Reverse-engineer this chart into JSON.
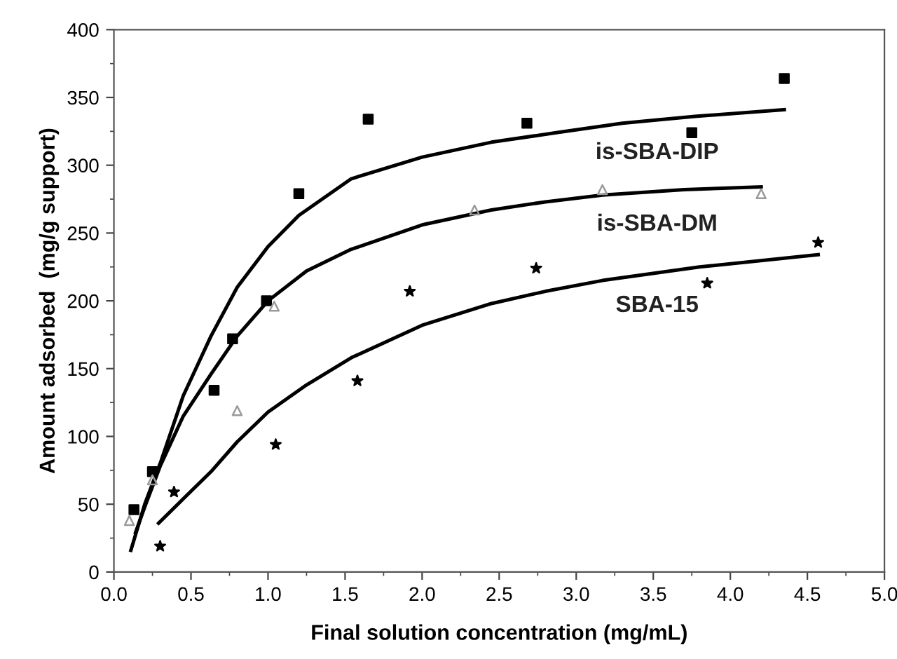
{
  "chart_data": {
    "type": "scatter",
    "xlabel": "Final solution concentration (mg/mL)",
    "ylabel": "Amount adsorbed  (mg/g support)",
    "xlim": [
      0,
      5.0
    ],
    "ylim": [
      0,
      400
    ],
    "xticks": [
      {
        "value": 0,
        "label": "0.0"
      },
      {
        "value": 0.5,
        "label": "0.5"
      },
      {
        "value": 1,
        "label": "1.0"
      },
      {
        "value": 1.5,
        "label": "1.5"
      },
      {
        "value": 2,
        "label": "2.0"
      },
      {
        "value": 2.5,
        "label": "2.5"
      },
      {
        "value": 3,
        "label": "3.0"
      },
      {
        "value": 3.5,
        "label": "3.5"
      },
      {
        "value": 4,
        "label": "4.0"
      },
      {
        "value": 4.5,
        "label": "4.5"
      },
      {
        "value": 5,
        "label": "5.0"
      }
    ],
    "yticks": [
      0,
      50,
      100,
      150,
      200,
      250,
      300,
      350,
      400
    ],
    "grid": false,
    "legend": false,
    "series": [
      {
        "marker": "square",
        "color": "#000000",
        "x": [
          0.13,
          0.25,
          0.65,
          0.77,
          0.99,
          1.2,
          1.65,
          2.68,
          3.75,
          4.35
        ],
        "values": [
          46,
          74,
          134,
          172,
          200,
          279,
          334,
          331,
          324,
          364
        ]
      },
      {
        "marker": "triangle",
        "color": "#9a9a9a",
        "x": [
          0.1,
          0.25,
          0.8,
          1.04,
          2.34,
          3.17,
          4.2
        ],
        "values": [
          38,
          68,
          119,
          196,
          267,
          282,
          279
        ]
      },
      {
        "marker": "star",
        "color": "#000000",
        "x": [
          0.3,
          0.39,
          1.05,
          1.58,
          1.92,
          2.74,
          3.85,
          4.57
        ],
        "values": [
          19,
          59,
          94,
          141,
          207,
          224,
          213,
          243
        ]
      },
      {
        "type": "line",
        "name": "is-SBA-DIP",
        "color": "#000000",
        "x": [
          0.11,
          0.2,
          0.3,
          0.45,
          0.63,
          0.8,
          1.0,
          1.2,
          1.54,
          2.0,
          2.45,
          2.87,
          3.3,
          3.77,
          4.35
        ],
        "values": [
          16,
          50,
          80,
          130,
          174,
          210,
          240,
          263,
          290,
          306,
          317,
          324,
          331,
          336,
          341
        ]
      },
      {
        "type": "line",
        "name": "is-SBA-DM",
        "color": "#000000",
        "x": [
          0.14,
          0.2,
          0.3,
          0.45,
          0.63,
          0.8,
          1.0,
          1.25,
          1.54,
          2.0,
          2.45,
          2.8,
          3.17,
          3.7,
          4.2
        ],
        "values": [
          29,
          48,
          78,
          115,
          146,
          174,
          200,
          222,
          238,
          256,
          267,
          273,
          278,
          282,
          284
        ]
      },
      {
        "type": "line",
        "name": "SBA-15",
        "color": "#000000",
        "x": [
          0.29,
          0.45,
          0.63,
          0.8,
          1.0,
          1.25,
          1.54,
          2.0,
          2.45,
          2.8,
          3.17,
          3.8,
          4.57
        ],
        "values": [
          36,
          54,
          74,
          96,
          118,
          138,
          158,
          182,
          198,
          207,
          215,
          225,
          234
        ]
      }
    ]
  }
}
